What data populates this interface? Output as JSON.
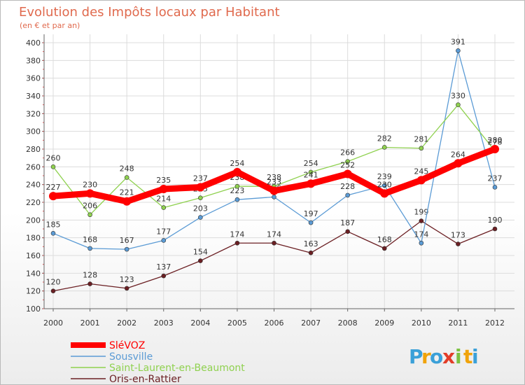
{
  "chart_data": {
    "type": "line",
    "title": "Evolution des Impôts locaux par Habitant",
    "subtitle": "(en € et par an)",
    "xlabel": "",
    "ylabel": "",
    "x": [
      "2000",
      "2001",
      "2002",
      "2003",
      "2004",
      "2005",
      "2006",
      "2007",
      "2008",
      "2009",
      "2010",
      "2011",
      "2012"
    ],
    "ylim": [
      100,
      400
    ],
    "yticks": [
      100,
      120,
      140,
      160,
      180,
      200,
      220,
      240,
      260,
      280,
      300,
      320,
      340,
      360,
      380,
      400
    ],
    "grid": true,
    "legend_position": "bottom-left",
    "series": [
      {
        "name": "SléVOZ",
        "color": "#ff0000",
        "values": [
          227,
          230,
          221,
          235,
          237,
          254,
          233,
          241,
          252,
          230,
          245,
          264,
          280
        ]
      },
      {
        "name": "Sousville",
        "color": "#5b9bd5",
        "values": [
          185,
          168,
          167,
          177,
          203,
          223,
          226,
          197,
          228,
          239,
          174,
          391,
          237
        ]
      },
      {
        "name": "Saint-Laurent-en-Beaumont",
        "color": "#8fd14f",
        "values": [
          260,
          206,
          248,
          214,
          225,
          238,
          238,
          254,
          266,
          282,
          281,
          330,
          278
        ]
      },
      {
        "name": "Oris-en-Rattier",
        "color": "#6b1f23",
        "values": [
          120,
          128,
          123,
          137,
          154,
          174,
          174,
          163,
          187,
          168,
          199,
          173,
          190
        ]
      }
    ]
  },
  "brand": {
    "letters": [
      "P",
      "r",
      "o",
      "x",
      "i",
      "t",
      "i"
    ],
    "colors": [
      "#3aa0d8",
      "#f0a30a",
      "#3aa0d8",
      "#e23d28",
      "#7cc242",
      "#f0a30a",
      "#3aa0d8"
    ]
  }
}
